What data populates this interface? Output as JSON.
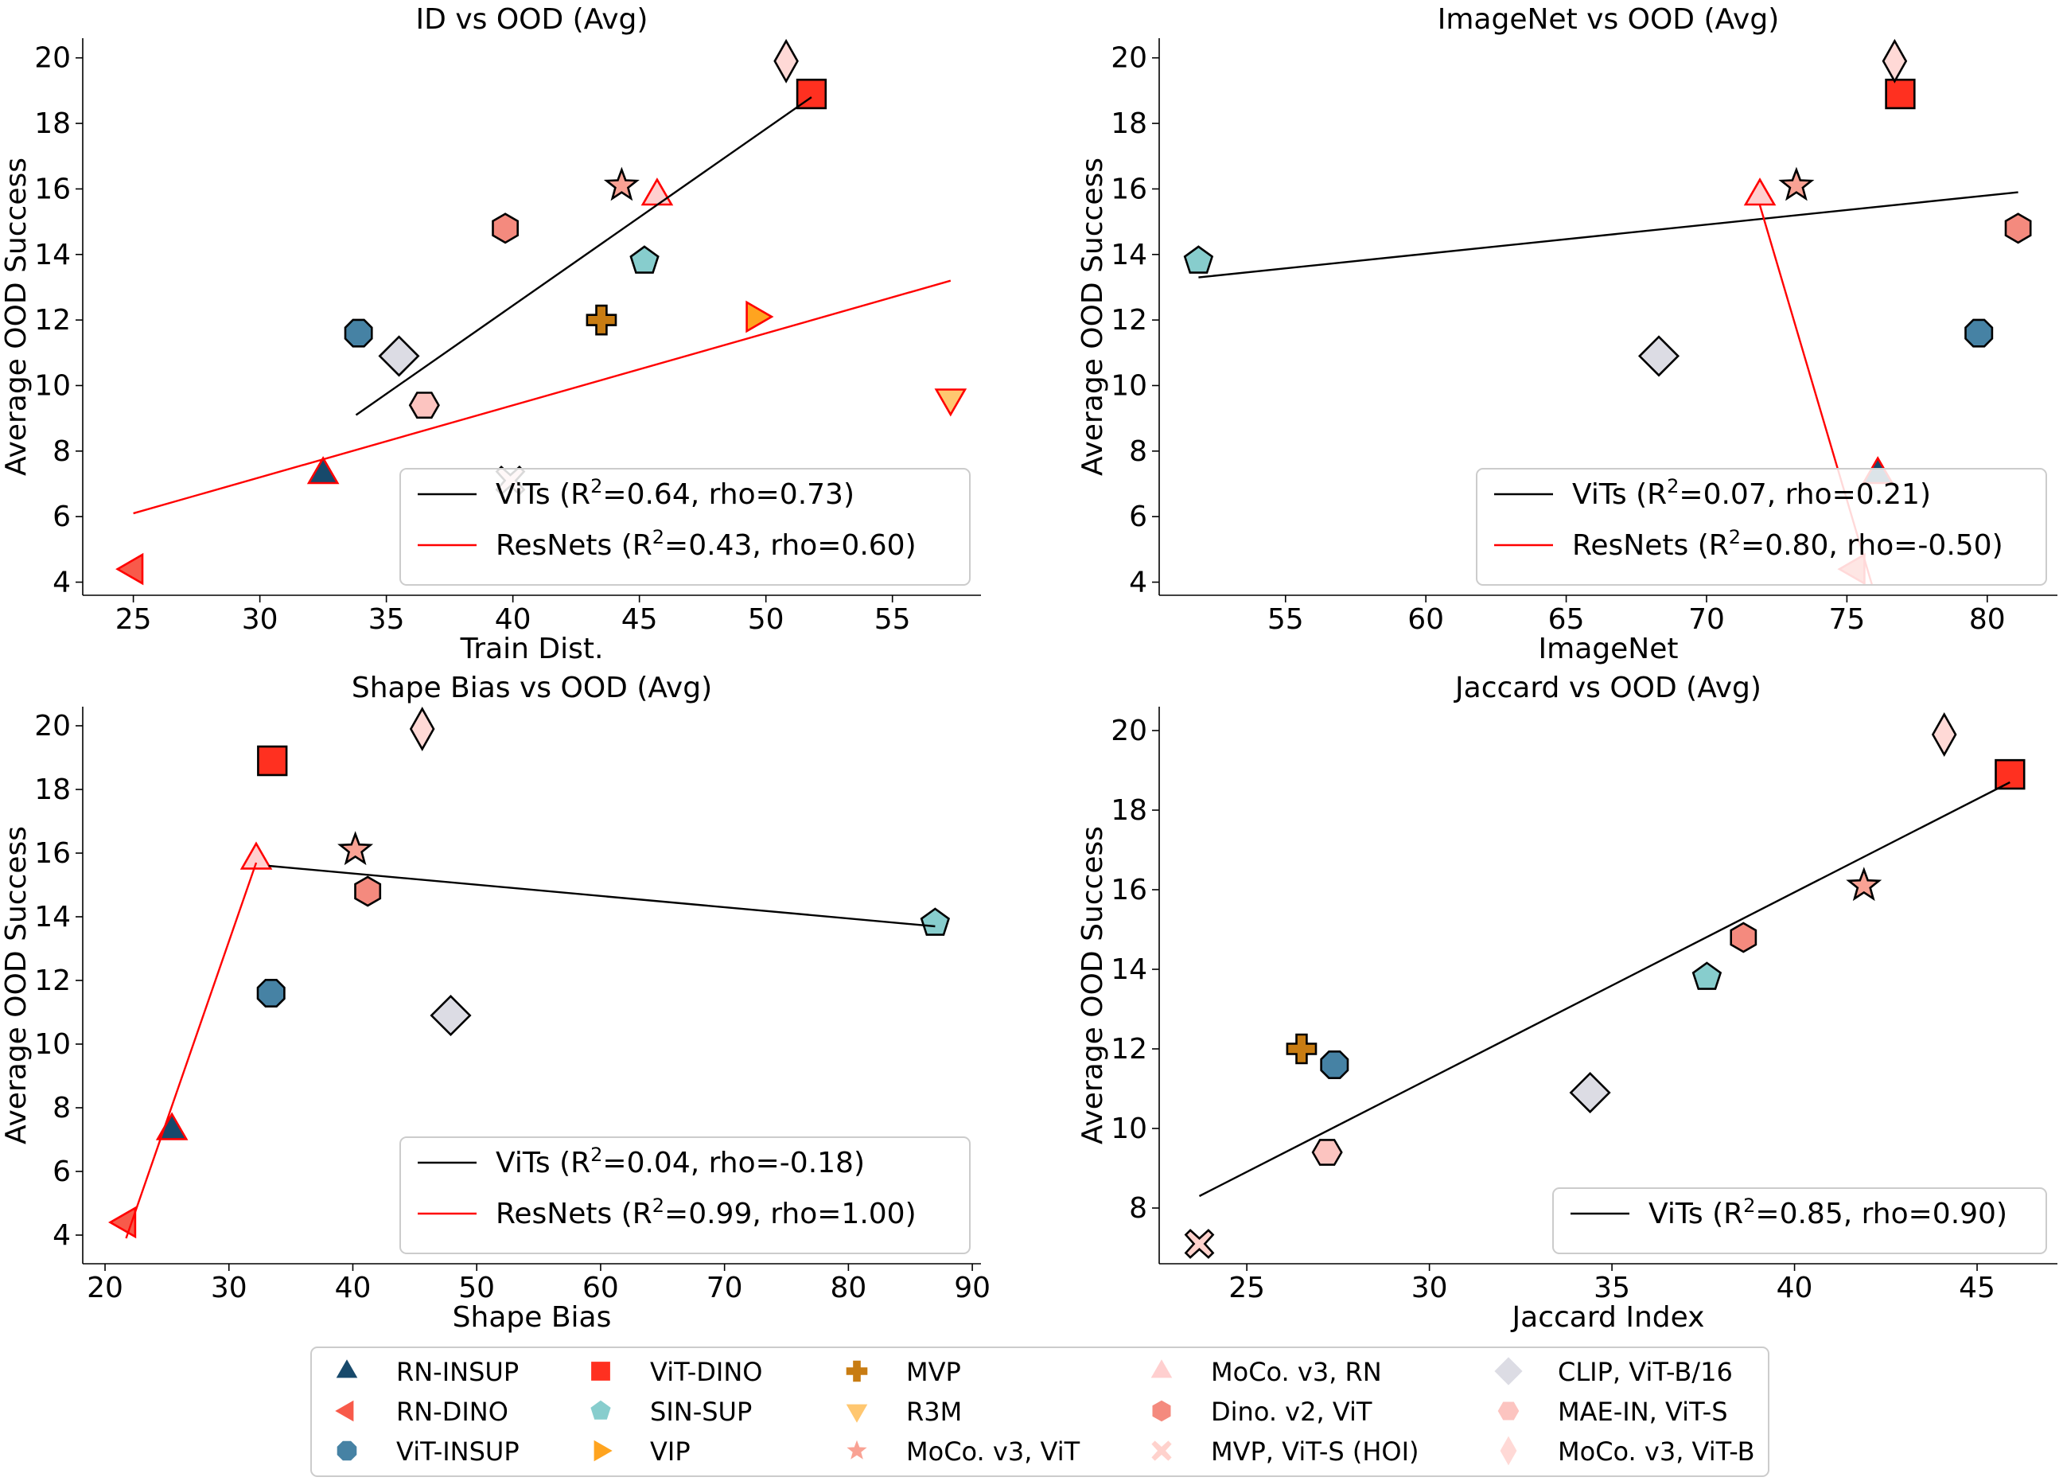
{
  "colors": {
    "RN-INSUP": "#17496b",
    "RN-DINO": "#f85a4a",
    "ViT-INSUP": "#4682a4",
    "ViT-DINO": "#ff3020",
    "SIN-SUP": "#87cdcd",
    "VIP": "#ffa41f",
    "MVP": "#c87c12",
    "R3M": "#ffc770",
    "MoCo. v3, ViT": "#f9a294",
    "MoCo. v3, RN": "#ffcfcf",
    "Dino. v2, ViT": "#f48a7e",
    "MVP, ViT-S (HOI)": "#ffd2cd",
    "CLIP, ViT-B/16": "#dcdce4",
    "MAE-IN, ViT-S": "#fcc4c0",
    "MoCo. v3, ViT-B": "#ffd9d6",
    "vit_fit": "#000000",
    "resnet_fit": "#ff0000"
  },
  "chart_data": [
    {
      "type": "scatter",
      "title": "ID vs OOD (Avg)",
      "xlabel": "Train Dist.",
      "ylabel": "Average OOD Success",
      "xlim": [
        23,
        58.5
      ],
      "ylim": [
        3.6,
        20.6
      ],
      "xticks": [
        25,
        30,
        35,
        40,
        45,
        50,
        55
      ],
      "yticks": [
        4,
        6,
        8,
        10,
        12,
        14,
        16,
        18,
        20
      ],
      "points": [
        {
          "model": "RN-INSUP",
          "x": 32.5,
          "y": 7.3
        },
        {
          "model": "RN-DINO",
          "x": 25.0,
          "y": 4.4
        },
        {
          "model": "ViT-INSUP",
          "x": 33.9,
          "y": 11.6
        },
        {
          "model": "ViT-DINO",
          "x": 51.8,
          "y": 18.9
        },
        {
          "model": "SIN-SUP",
          "x": 45.2,
          "y": 13.8
        },
        {
          "model": "VIP",
          "x": 49.6,
          "y": 12.1
        },
        {
          "model": "MVP",
          "x": 43.5,
          "y": 12.0
        },
        {
          "model": "R3M",
          "x": 57.3,
          "y": 9.6
        },
        {
          "model": "MoCo. v3, ViT",
          "x": 44.3,
          "y": 16.1
        },
        {
          "model": "MoCo. v3, RN",
          "x": 45.7,
          "y": 15.8
        },
        {
          "model": "Dino. v2, ViT",
          "x": 39.7,
          "y": 14.8
        },
        {
          "model": "MVP, ViT-S (HOI)",
          "x": 39.9,
          "y": 7.1
        },
        {
          "model": "CLIP, ViT-B/16",
          "x": 35.5,
          "y": 10.9
        },
        {
          "model": "MAE-IN, ViT-S",
          "x": 36.5,
          "y": 9.4
        },
        {
          "model": "MoCo. v3, ViT-B",
          "x": 50.8,
          "y": 19.9
        }
      ],
      "fits": [
        {
          "group": "vit",
          "label_prefix": "ViTs (R",
          "label_suffix": "=0.64, rho=0.73)",
          "x": [
            33.8,
            51.8
          ],
          "y": [
            9.1,
            18.8
          ]
        },
        {
          "group": "resnet",
          "label_prefix": "ResNets (R",
          "label_suffix": "=0.43, rho=0.60)",
          "x": [
            25.0,
            57.3
          ],
          "y": [
            6.1,
            13.2
          ]
        }
      ]
    },
    {
      "type": "scatter",
      "title": "ImageNet vs OOD (Avg)",
      "xlabel": "ImageNet",
      "ylabel": "Average OOD Success",
      "xlim": [
        50.5,
        82.5
      ],
      "ylim": [
        3.6,
        20.6
      ],
      "xticks": [
        55,
        60,
        65,
        70,
        75,
        80
      ],
      "yticks": [
        4,
        6,
        8,
        10,
        12,
        14,
        16,
        18,
        20
      ],
      "points": [
        {
          "model": "RN-INSUP",
          "x": 76.1,
          "y": 7.3
        },
        {
          "model": "RN-DINO",
          "x": 75.3,
          "y": 4.4
        },
        {
          "model": "ViT-INSUP",
          "x": 79.7,
          "y": 11.6
        },
        {
          "model": "ViT-DINO",
          "x": 76.9,
          "y": 18.9
        },
        {
          "model": "SIN-SUP",
          "x": 51.9,
          "y": 13.8
        },
        {
          "model": "MoCo. v3, ViT",
          "x": 73.2,
          "y": 16.1
        },
        {
          "model": "MoCo. v3, RN",
          "x": 71.9,
          "y": 15.8
        },
        {
          "model": "Dino. v2, ViT",
          "x": 81.1,
          "y": 14.8
        },
        {
          "model": "CLIP, ViT-B/16",
          "x": 68.3,
          "y": 10.9
        },
        {
          "model": "MoCo. v3, ViT-B",
          "x": 76.7,
          "y": 19.9
        }
      ],
      "fits": [
        {
          "group": "vit",
          "label_prefix": "ViTs (R",
          "label_suffix": "=0.07, rho=0.21)",
          "x": [
            51.9,
            81.1
          ],
          "y": [
            13.3,
            15.9
          ]
        },
        {
          "group": "resnet",
          "label_prefix": "ResNets (R",
          "label_suffix": "=0.80, rho=-0.50)",
          "x": [
            71.9,
            75.9
          ],
          "y": [
            15.5,
            3.9
          ]
        }
      ]
    },
    {
      "type": "scatter",
      "title": "Shape Bias vs OOD (Avg)",
      "xlabel": "Shape Bias",
      "ylabel": "Average OOD Success",
      "xlim": [
        18.2,
        90.7
      ],
      "ylim": [
        3.1,
        20.6
      ],
      "xticks": [
        20,
        30,
        40,
        50,
        60,
        70,
        80,
        90
      ],
      "yticks": [
        4,
        6,
        8,
        10,
        12,
        14,
        16,
        18,
        20
      ],
      "points": [
        {
          "model": "RN-INSUP",
          "x": 25.4,
          "y": 7.3
        },
        {
          "model": "RN-DINO",
          "x": 21.7,
          "y": 4.4
        },
        {
          "model": "ViT-INSUP",
          "x": 33.4,
          "y": 11.6
        },
        {
          "model": "ViT-DINO",
          "x": 33.5,
          "y": 18.9
        },
        {
          "model": "SIN-SUP",
          "x": 87.0,
          "y": 13.8
        },
        {
          "model": "MoCo. v3, ViT",
          "x": 40.2,
          "y": 16.1
        },
        {
          "model": "MoCo. v3, RN",
          "x": 32.2,
          "y": 15.8
        },
        {
          "model": "Dino. v2, ViT",
          "x": 41.2,
          "y": 14.8
        },
        {
          "model": "CLIP, ViT-B/16",
          "x": 47.9,
          "y": 10.9
        },
        {
          "model": "MoCo. v3, ViT-B",
          "x": 45.6,
          "y": 19.9
        }
      ],
      "fits": [
        {
          "group": "vit",
          "label_prefix": "ViTs (R",
          "label_suffix": "=0.04, rho=-0.18)",
          "x": [
            33.2,
            87.0
          ],
          "y": [
            15.6,
            13.7
          ]
        },
        {
          "group": "resnet",
          "label_prefix": "ResNets (R",
          "label_suffix": "=0.99, rho=1.00)",
          "x": [
            21.7,
            32.2
          ],
          "y": [
            3.9,
            15.7
          ]
        }
      ]
    },
    {
      "type": "scatter",
      "title": "Jaccard vs OOD (Avg)",
      "xlabel": "Jaccard Index",
      "ylabel": "Average OOD Success",
      "xlim": [
        22.6,
        47.2
      ],
      "ylim": [
        6.6,
        20.6
      ],
      "xticks": [
        25,
        30,
        35,
        40,
        45
      ],
      "yticks": [
        8,
        10,
        12,
        14,
        16,
        18,
        20
      ],
      "points": [
        {
          "model": "ViT-INSUP",
          "x": 27.4,
          "y": 11.6
        },
        {
          "model": "ViT-DINO",
          "x": 45.9,
          "y": 18.9
        },
        {
          "model": "SIN-SUP",
          "x": 37.6,
          "y": 13.8
        },
        {
          "model": "MVP",
          "x": 26.5,
          "y": 12.0
        },
        {
          "model": "MoCo. v3, ViT",
          "x": 41.9,
          "y": 16.1
        },
        {
          "model": "Dino. v2, ViT",
          "x": 38.6,
          "y": 14.8
        },
        {
          "model": "MVP, ViT-S (HOI)",
          "x": 23.7,
          "y": 7.1
        },
        {
          "model": "CLIP, ViT-B/16",
          "x": 34.4,
          "y": 10.9
        },
        {
          "model": "MAE-IN, ViT-S",
          "x": 27.2,
          "y": 9.4
        },
        {
          "model": "MoCo. v3, ViT-B",
          "x": 44.1,
          "y": 19.9
        }
      ],
      "fits": [
        {
          "group": "vit",
          "label_prefix": "ViTs (R",
          "label_suffix": "=0.85, rho=0.90)",
          "x": [
            23.7,
            45.9
          ],
          "y": [
            8.3,
            18.7
          ]
        }
      ]
    }
  ],
  "legend": {
    "superscript": "2",
    "entries": [
      "RN-INSUP",
      "RN-DINO",
      "ViT-INSUP",
      "ViT-DINO",
      "SIN-SUP",
      "VIP",
      "MVP",
      "R3M",
      "MoCo. v3, ViT",
      "MoCo. v3, RN",
      "Dino. v2, ViT",
      "MVP, ViT-S (HOI)",
      "CLIP, ViT-B/16",
      "MAE-IN, ViT-S",
      "MoCo. v3, ViT-B"
    ]
  }
}
